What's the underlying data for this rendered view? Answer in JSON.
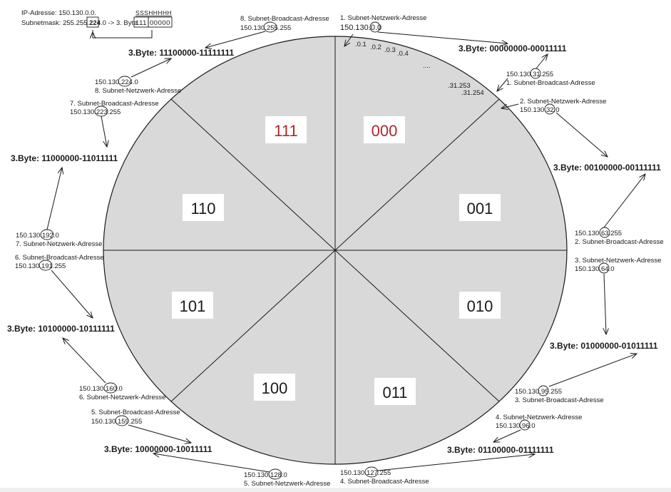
{
  "header": {
    "ip": "IP-Adresse: 150.130.0.0.",
    "mask_pre": "Subnetmask: 255.255.",
    "mask_bold": "224",
    "mask_post": ".0 -> 3. Byte",
    "mask_bits_a": "111",
    "mask_bits_b": "00000",
    "bit_legend": "SSSHHHHH"
  },
  "segments": [
    {
      "bits": "000",
      "highlight": true
    },
    {
      "bits": "001",
      "highlight": false
    },
    {
      "bits": "010",
      "highlight": false
    },
    {
      "bits": "011",
      "highlight": false
    },
    {
      "bits": "100",
      "highlight": false
    },
    {
      "bits": "101",
      "highlight": false
    },
    {
      "bits": "110",
      "highlight": false
    },
    {
      "bits": "111",
      "highlight": true
    }
  ],
  "byte_ranges": [
    "3.Byte: 00000000-00011111",
    "3.Byte: 00100000-00111111",
    "3.Byte: 01000000-01011111",
    "3.Byte: 01100000-01111111",
    "3.Byte: 10000000-10011111",
    "3.Byte: 10100000-10111111",
    "3.Byte: 11000000-11011111",
    "3.Byte: 11100000-11111111"
  ],
  "host_ticks": [
    ".0.1",
    ".0.2",
    ".0.3",
    ".0.4",
    "....",
    ".31.253",
    ".31.254"
  ],
  "labels": {
    "n1": {
      "title": "1. Subnet-Netzwerk-Adresse",
      "addr_pre": "150.130.",
      "addr_mid": "0",
      "addr_post": ".0"
    },
    "b1": {
      "title": "1. Subnet-Broadcast-Adresse",
      "addr_pre": "150.130.",
      "addr_mid": "31",
      "addr_post": ".255"
    },
    "n2": {
      "title": "2. Subnet-Netzwerk-Adresse",
      "addr_pre": "150.130.",
      "addr_mid": "32",
      "addr_post": ".0"
    },
    "b2": {
      "title": "2. Subnet-Broadcast-Adresse",
      "addr_pre": "150.130.",
      "addr_mid": "63",
      "addr_post": ".255"
    },
    "n3": {
      "title": "3. Subnet-Netzwerk-Adresse",
      "addr_pre": "150.130.",
      "addr_mid": "64",
      "addr_post": ".0"
    },
    "b3": {
      "title": "3. Subnet-Broadcast-Adresse",
      "addr_pre": "150.130.",
      "addr_mid": "95",
      "addr_post": ".255"
    },
    "n4": {
      "title": "4. Subnet-Netzwerk-Adresse",
      "addr_pre": "150.130.",
      "addr_mid": "96",
      "addr_post": ".0"
    },
    "b4": {
      "title": "4. Subnet-Broadcast-Adresse",
      "addr_pre": "150.130.",
      "addr_mid": "127",
      "addr_post": ".255"
    },
    "n5": {
      "title": "5. Subnet-Netzwerk-Adresse",
      "addr_pre": "150.130.",
      "addr_mid": "128",
      "addr_post": ".0"
    },
    "b5": {
      "title": "5. Subnet-Broadcast-Adresse",
      "addr_pre": "150.130.",
      "addr_mid": "159",
      "addr_post": ".255"
    },
    "n6": {
      "title": "6. Subnet-Netzwerk-Adresse",
      "addr_pre": "150.130.",
      "addr_mid": "160",
      "addr_post": ".0"
    },
    "b6": {
      "title": "6. Subnet-Broadcast-Adresse",
      "addr_pre": "150.130.",
      "addr_mid": "191",
      "addr_post": ".255"
    },
    "n7": {
      "title": "7. Subnet-Netzwerk-Adresse",
      "addr_pre": "150.130.",
      "addr_mid": "192",
      "addr_post": ".0"
    },
    "b7": {
      "title": "7. Subnet-Broadcast-Adresse",
      "addr_pre": "150.130.",
      "addr_mid": "223",
      "addr_post": ".255"
    },
    "n8": {
      "title": "8. Subnet-Netzwerk-Adresse",
      "addr_pre": "150.130.",
      "addr_mid": "224",
      "addr_post": ".0"
    },
    "b8": {
      "title": "8. Subnet-Broadcast-Adresse",
      "addr_pre": "150.130.",
      "addr_mid": "255",
      "addr_post": ".255"
    }
  },
  "colors": {
    "ellipse_fill": "#d9d9d9",
    "highlight": "#b3262a",
    "line": "#1a1a1a"
  }
}
